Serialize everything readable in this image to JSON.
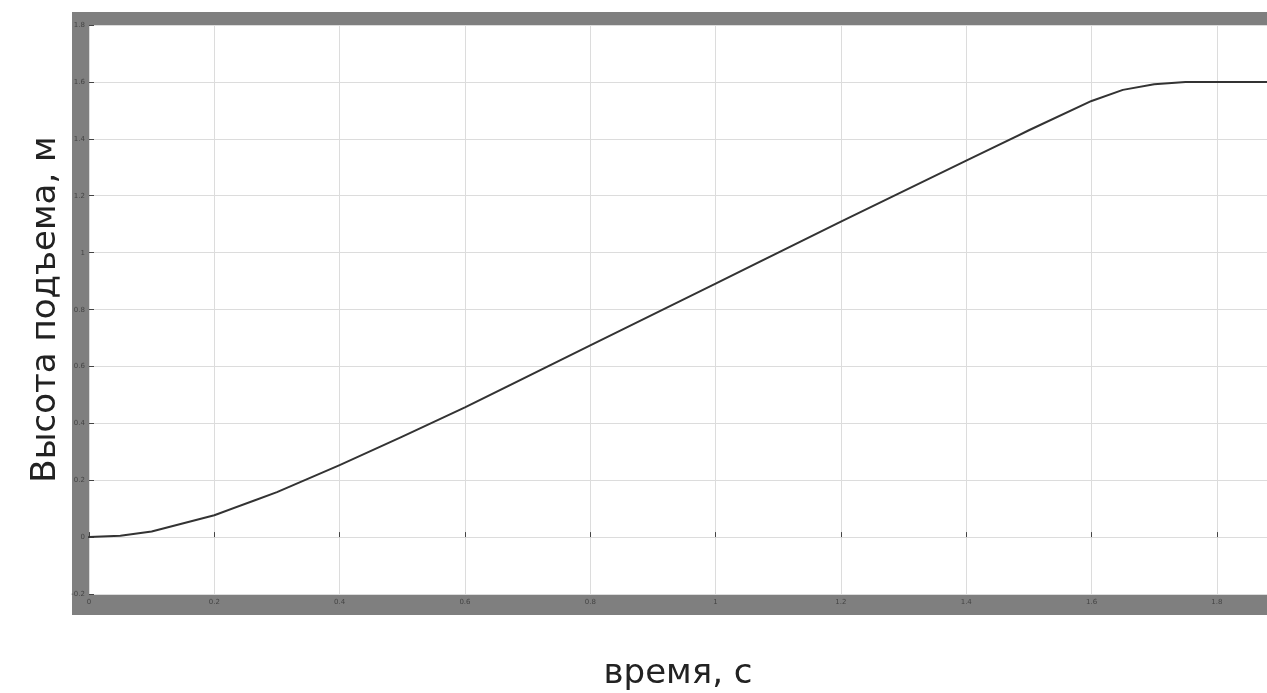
{
  "chart_data": {
    "type": "line",
    "xlabel": "время, с",
    "ylabel": "Высота подъема, м",
    "x": [
      0,
      0.05,
      0.1,
      0.2,
      0.3,
      0.4,
      0.5,
      0.6,
      0.8,
      1.0,
      1.2,
      1.4,
      1.5,
      1.6,
      1.65,
      1.7,
      1.75,
      1.8,
      1.88
    ],
    "series": [
      {
        "color": "#333333",
        "values": [
          0,
          0.005,
          0.02,
          0.077,
          0.158,
          0.253,
          0.353,
          0.456,
          0.674,
          0.891,
          1.109,
          1.323,
          1.43,
          1.533,
          1.572,
          1.592,
          1.6,
          1.6,
          1.6
        ]
      }
    ],
    "xlim": [
      0,
      1.88
    ],
    "xticks": [
      0,
      0.2,
      0.4,
      0.6,
      0.8,
      1,
      1.2,
      1.4,
      1.6,
      1.8
    ],
    "ylim": [
      -0.2,
      1.8
    ],
    "yticks": [
      -0.2,
      0,
      0.2,
      0.4,
      0.6,
      0.8,
      1,
      1.2,
      1.4,
      1.6,
      1.8
    ],
    "grid": true,
    "marker": "none",
    "line_style": "solid"
  }
}
